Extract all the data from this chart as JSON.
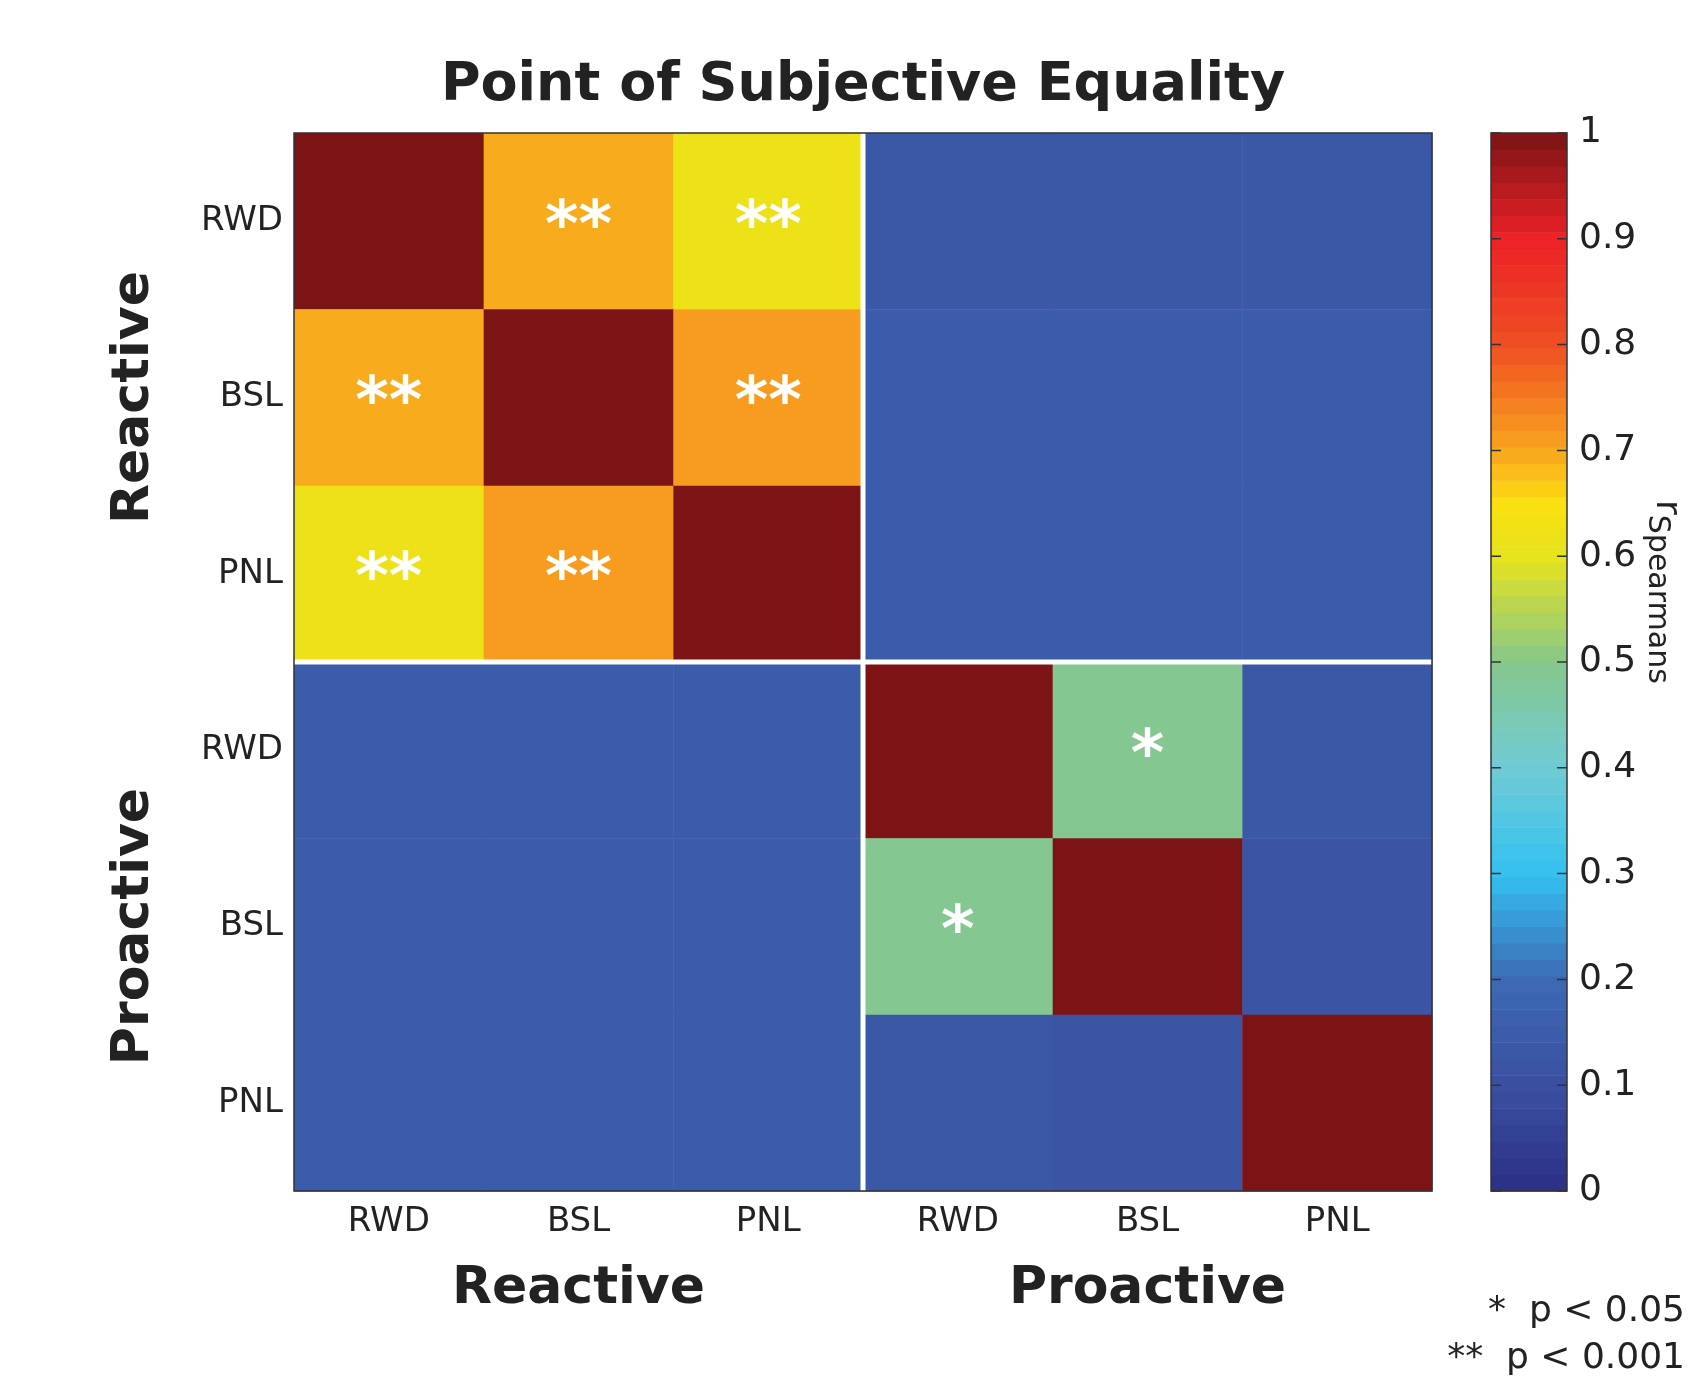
{
  "chart_data": {
    "type": "heatmap",
    "title": "Point of Subjective Equality",
    "categories": [
      "RWD",
      "BSL",
      "PNL",
      "RWD",
      "BSL",
      "PNL"
    ],
    "y_categories": [
      "RWD",
      "BSL",
      "PNL",
      "RWD",
      "BSL",
      "PNL"
    ],
    "cells": [
      [
        1,
        0.69,
        0.62,
        0.14,
        0.14,
        0.14
      ],
      [
        0.69,
        1,
        0.71,
        0.15,
        0.15,
        0.15
      ],
      [
        0.62,
        0.71,
        1,
        0.15,
        0.15,
        0.15
      ],
      [
        0.15,
        0.15,
        0.15,
        1,
        0.49,
        0.14
      ],
      [
        0.15,
        0.15,
        0.15,
        0.49,
        1,
        0.11
      ],
      [
        0.15,
        0.15,
        0.15,
        0.14,
        0.11,
        1
      ]
    ],
    "cell_labels": [
      [
        null,
        "**",
        "**",
        null,
        null,
        null
      ],
      [
        "**",
        null,
        "**",
        null,
        null,
        null
      ],
      [
        "**",
        "**",
        null,
        null,
        null,
        null
      ],
      [
        null,
        null,
        null,
        null,
        "*",
        null
      ],
      [
        null,
        null,
        null,
        "*",
        null,
        null
      ],
      [
        null,
        null,
        null,
        null,
        null,
        null
      ]
    ],
    "clim": [
      0,
      1
    ],
    "cticks": [
      0,
      0.1,
      0.2,
      0.3,
      0.4,
      0.5,
      0.6,
      0.7,
      0.8,
      0.9,
      1
    ],
    "clabel": "r$_{Spearmans}$",
    "annotations": [
      "Reactive",
      "Proactive",
      "Reactive",
      "Proactive",
      "*  p < 0.05",
      "**  p < 0.001"
    ]
  }
}
